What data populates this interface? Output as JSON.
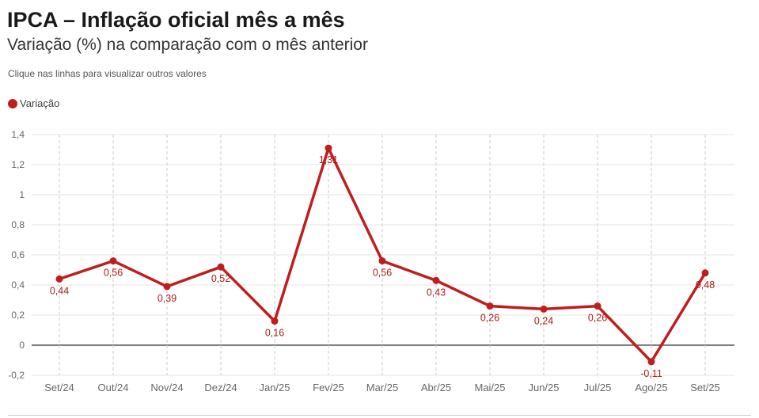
{
  "header": {
    "title": "IPCA – Inflação oficial mês a mês",
    "subtitle": "Variação (%) na comparação com o mês anterior",
    "note": "Clique nas linhas para visualizar outros valores"
  },
  "legend": {
    "label": "Variação",
    "color": "#bf1e1e",
    "icon": "circle-icon"
  },
  "chart_data": {
    "type": "line",
    "categories": [
      "Set/24",
      "Out/24",
      "Nov/24",
      "Dez/24",
      "Jan/25",
      "Fev/25",
      "Mar/25",
      "Abr/25",
      "Mai/25",
      "Jun/25",
      "Jul/25",
      "Ago/25",
      "Set/25"
    ],
    "series": [
      {
        "name": "Variação",
        "color": "#bf1e1e",
        "values": [
          0.44,
          0.56,
          0.39,
          0.52,
          0.16,
          1.31,
          0.56,
          0.43,
          0.26,
          0.24,
          0.26,
          -0.11,
          0.48
        ],
        "labels": [
          "0,44",
          "0,56",
          "0,39",
          "0,52",
          "0,16",
          "1,31",
          "0,56",
          "0,43",
          "0,26",
          "0,24",
          "0,26",
          "-0,11",
          "0,48"
        ]
      }
    ],
    "yticks": [
      -0.2,
      0,
      0.2,
      0.4,
      0.6,
      0.8,
      1,
      1.2,
      1.4
    ],
    "ytick_labels": [
      "-0,2",
      "0",
      "0,2",
      "0,4",
      "0,6",
      "0,8",
      "1",
      "1,2",
      "1,4"
    ],
    "ylim": [
      -0.2,
      1.4
    ],
    "grid": true
  }
}
